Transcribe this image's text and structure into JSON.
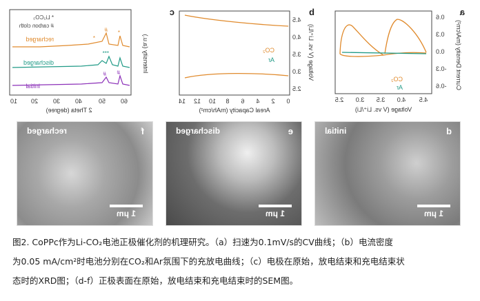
{
  "panels": {
    "a": {
      "letter": "a",
      "ylabel": "Current Density (mA/cm²)",
      "xlabel": "Voltage (V vs. Li⁺/Li)",
      "yticks": [
        "0.6",
        "0.3",
        "0.0",
        "-0.3",
        "-0.6"
      ],
      "xticks": [
        "4.5",
        "4.0",
        "3.5",
        "3.0",
        "2.5"
      ],
      "legend": [
        "CO₂",
        "Ar"
      ]
    },
    "b": {
      "letter": "b",
      "ylabel": "Voltage (V vs. Li⁺/Li)",
      "yticks": [
        "4.5",
        "4.0",
        "3.5",
        "3.0",
        "2.5"
      ]
    },
    "c": {
      "letter": "c",
      "xlabel": "Areal Capacity (mAh/cm²)",
      "xticks": [
        "0",
        "2",
        "4",
        "6",
        "8",
        "10",
        "12",
        "14"
      ],
      "legend": [
        "CO₂",
        "Ar"
      ]
    },
    "xrd": {
      "ylabel": "Intensity (a.u.)",
      "xlabel": "2 Theta (degree)",
      "xticks": [
        "10",
        "20",
        "30",
        "40",
        "50",
        "60"
      ],
      "legend": [
        "* Li₂CO₃",
        "# carbon cloth"
      ],
      "curves": [
        "recharged",
        "discharged",
        "initial"
      ],
      "marks": [
        "*",
        "#",
        "*",
        "***",
        "#",
        "#"
      ]
    },
    "sem": [
      {
        "letter": "d",
        "label": "initial",
        "scale": "1 μm"
      },
      {
        "letter": "e",
        "label": "discharged",
        "scale": "1 μm"
      },
      {
        "letter": "f",
        "label": "recharged",
        "scale": "1 μm"
      }
    ]
  },
  "colors": {
    "co2": "#e08a2c",
    "ar": "#1f9a86",
    "recharged": "#e08a2c",
    "discharged": "#1f9a86",
    "initial": "#8b2fb8"
  },
  "caption": {
    "line1": "图2. CoPPc作为Li-CO₂电池正极催化剂的机理研究。（a）扫速为0.1mV/s的CV曲线；（b）电流密度",
    "line2": "为0.05 mA/cm²时电池分别在CO₂和Ar氛围下的充放电曲线；（c）电极在原始，放电结束和充电结束状",
    "line3": "态时的XRD图；（d-f）正极表面在原始，放电结束和充电结束时的SEM图。"
  }
}
